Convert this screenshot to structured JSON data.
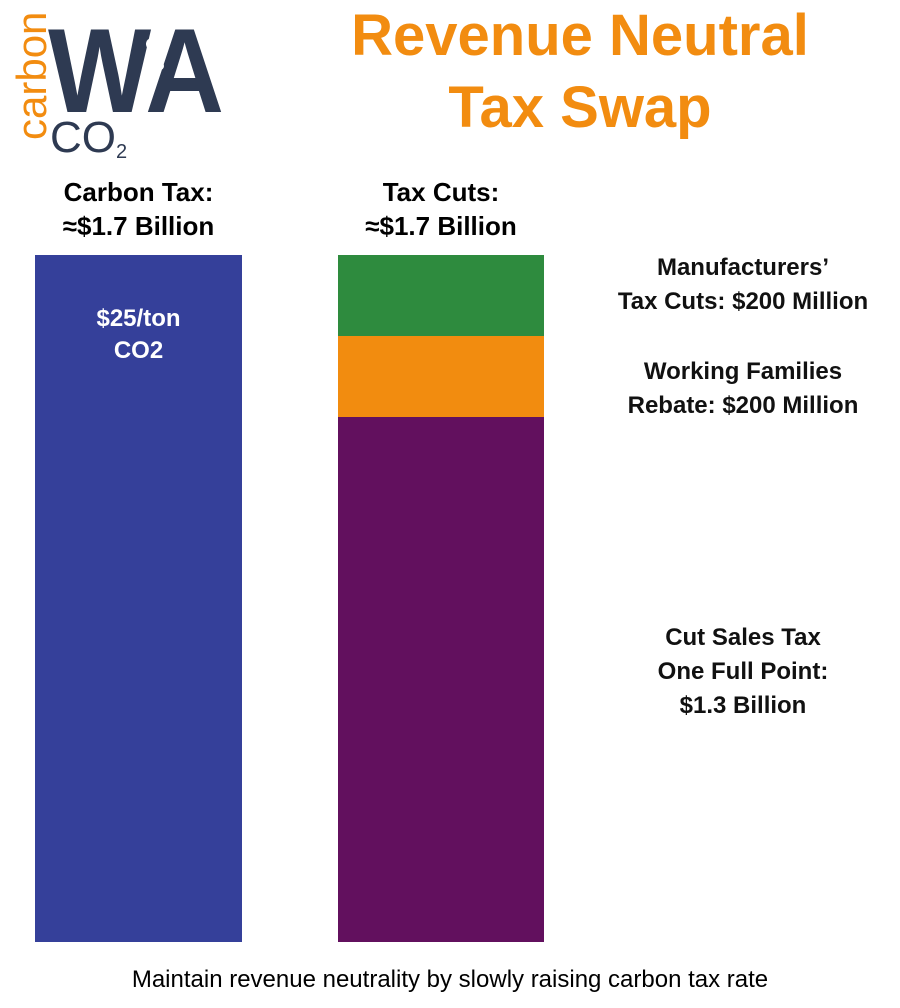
{
  "logo": {
    "word": "carbon",
    "letters": "WA",
    "co2_main": "CO",
    "co2_sub": "2",
    "icon": "carbonwa-logo"
  },
  "title": {
    "line1": "Revenue Neutral",
    "line2": "Tax Swap",
    "color": "#F28C10"
  },
  "footer": "Maintain revenue neutrality by slowly raising carbon tax rate",
  "chart_data": {
    "type": "bar",
    "stacked": true,
    "unit": "USD millions",
    "ylim": [
      0,
      1700
    ],
    "grid": false,
    "categories": [
      {
        "key": "carbon",
        "heading_line1": "Carbon Tax:",
        "heading_line2": "≈$1.7 Billion"
      },
      {
        "key": "cuts",
        "heading_line1": "Tax Cuts:",
        "heading_line2": "≈$1.7 Billion"
      }
    ],
    "segments": [
      {
        "bar": "carbon",
        "value": 1700,
        "color": "#35409A",
        "label_lines": [
          "$25/ton",
          "CO2"
        ],
        "label_position": "inside"
      },
      {
        "bar": "cuts",
        "value": 200,
        "color": "#2E8B3E",
        "label_lines": [
          "Manufacturers’",
          "Tax Cuts: $200 Million"
        ],
        "label_position": "right"
      },
      {
        "bar": "cuts",
        "value": 200,
        "color": "#F28C0F",
        "label_lines": [
          "Working Families",
          "Rebate: $200 Million"
        ],
        "label_position": "right"
      },
      {
        "bar": "cuts",
        "value": 1300,
        "color": "#62105E",
        "label_lines": [
          "Cut Sales Tax",
          "One Full Point:",
          "$1.3 Billion"
        ],
        "label_position": "right"
      }
    ]
  }
}
